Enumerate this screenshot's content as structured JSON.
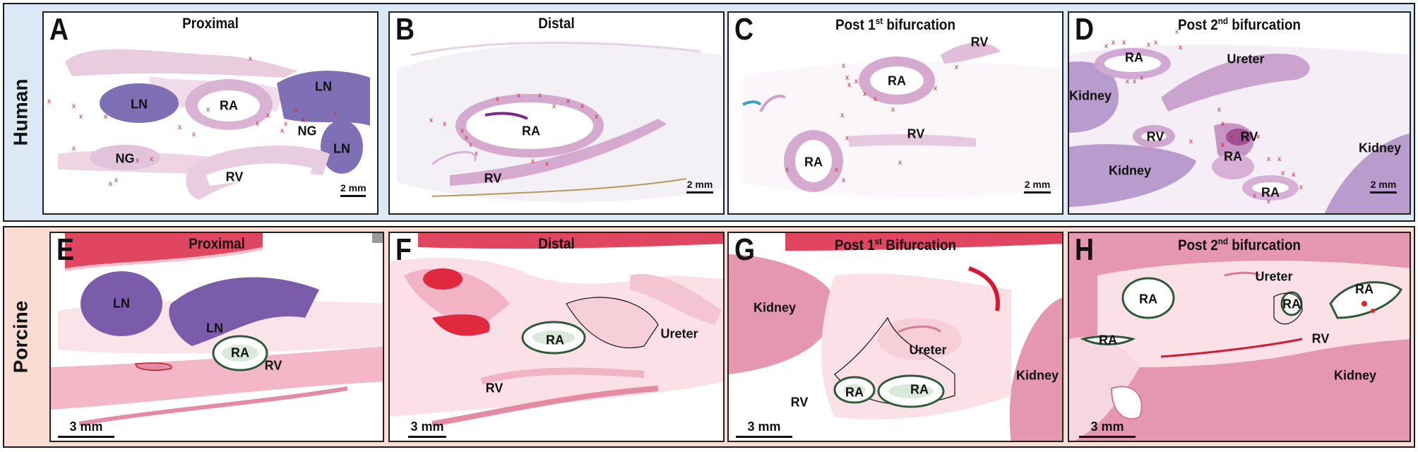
{
  "rows": {
    "human": {
      "label": "Human",
      "color": "#dce8f5"
    },
    "porcine": {
      "label": "Porcine",
      "color": "#fadcd2"
    }
  },
  "panels": {
    "A": {
      "letter": "A",
      "title": "Proximal",
      "scale": "2 mm",
      "labels": {
        "ln1": "LN",
        "ra": "RA",
        "ln2": "LN",
        "ng1": "NG",
        "ln3": "LN",
        "ng2": "NG",
        "rv": "RV"
      }
    },
    "B": {
      "letter": "B",
      "title": "Distal",
      "scale": "2 mm",
      "labels": {
        "ra": "RA",
        "rv": "RV"
      }
    },
    "C": {
      "letter": "C",
      "title_main": "Post 1",
      "title_sup": "st",
      "title_rest": " bifurcation",
      "scale": "2 mm",
      "labels": {
        "rv1": "RV",
        "ra1": "RA",
        "rv2": "RV",
        "ra2": "RA"
      }
    },
    "D": {
      "letter": "D",
      "title_main": "Post 2",
      "title_sup": "nd",
      "title_rest": " bifurcation",
      "scale": "2 mm",
      "labels": {
        "ra1": "RA",
        "ureter": "Ureter",
        "kidney1": "Kidney",
        "rv1": "RV",
        "rv2": "RV",
        "kidney2": "Kidney",
        "ra2": "RA",
        "kidney3": "Kidney",
        "ra3": "RA"
      }
    },
    "E": {
      "letter": "E",
      "title": "Proximal",
      "scale": "3 mm",
      "labels": {
        "ln1": "LN",
        "ln2": "LN",
        "ra": "RA",
        "rv": "RV"
      }
    },
    "F": {
      "letter": "F",
      "title": "Distal",
      "scale": "3 mm",
      "labels": {
        "ureter": "Ureter",
        "ra": "RA",
        "rv": "RV"
      }
    },
    "G": {
      "letter": "G",
      "title_main": "Post 1",
      "title_sup": "st",
      "title_rest": " Bifurcation",
      "scale": "3 mm",
      "labels": {
        "kidney1": "Kidney",
        "ureter": "Ureter",
        "kidney2": "Kidney",
        "ra1": "RA",
        "ra2": "RA",
        "rv": "RV"
      }
    },
    "H": {
      "letter": "H",
      "title_main": "Post 2",
      "title_sup": "nd",
      "title_rest": " bifurcation",
      "scale": "3 mm",
      "labels": {
        "ureter": "Ureter",
        "ra1": "RA",
        "ra2": "RA",
        "ra3": "RA",
        "ra4": "RA",
        "rv": "RV",
        "kidney": "Kidney"
      }
    }
  },
  "colors": {
    "he_pale": "#e8c8dc",
    "he_purple": "#b48cc3",
    "ln_purple": "#7f6fb5",
    "porcine_pink": "#f2b8c8",
    "muscle_red": "#e0465f",
    "kidney_human": "#b89ccd",
    "kidney_porcine": "#e597b2",
    "marker_red": "#e02020",
    "ra_outline": "#2f5a3a"
  }
}
